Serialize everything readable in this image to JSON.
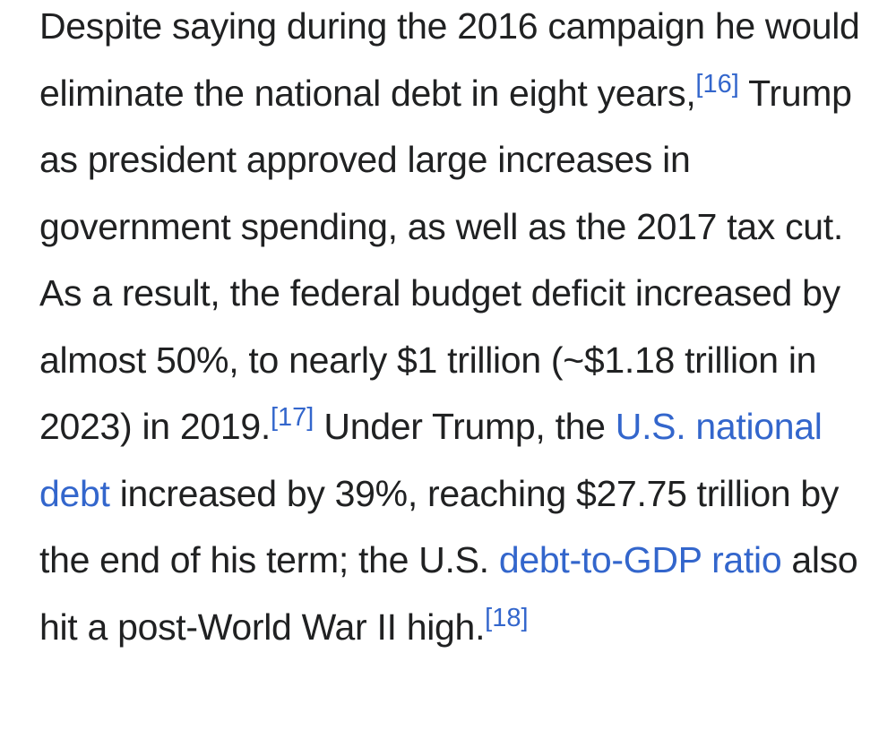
{
  "paragraph": {
    "t1": "Despite saying during the 2016 campaign he would eliminate the national debt in eight years,",
    "ref1": "[16]",
    "t2": " Trump as president approved large increases in government spending, as well as the 2017 tax cut. As a result, the federal budget deficit increased by almost 50%, to nearly $1 trillion (~$1.18 trillion in 2023) in 2019.",
    "ref2": "[17]",
    "t3": " Under Trump, the ",
    "link1": "U.S. national debt",
    "t4": " increased by 39%, reaching $27.75 trillion by the end of his term; the U.S. ",
    "link2": "debt-to-GDP ratio",
    "t5": " also hit a post-World War II high.",
    "ref3": "[18]"
  },
  "colors": {
    "text": "#202122",
    "link": "#3366cc",
    "background": "#ffffff"
  }
}
